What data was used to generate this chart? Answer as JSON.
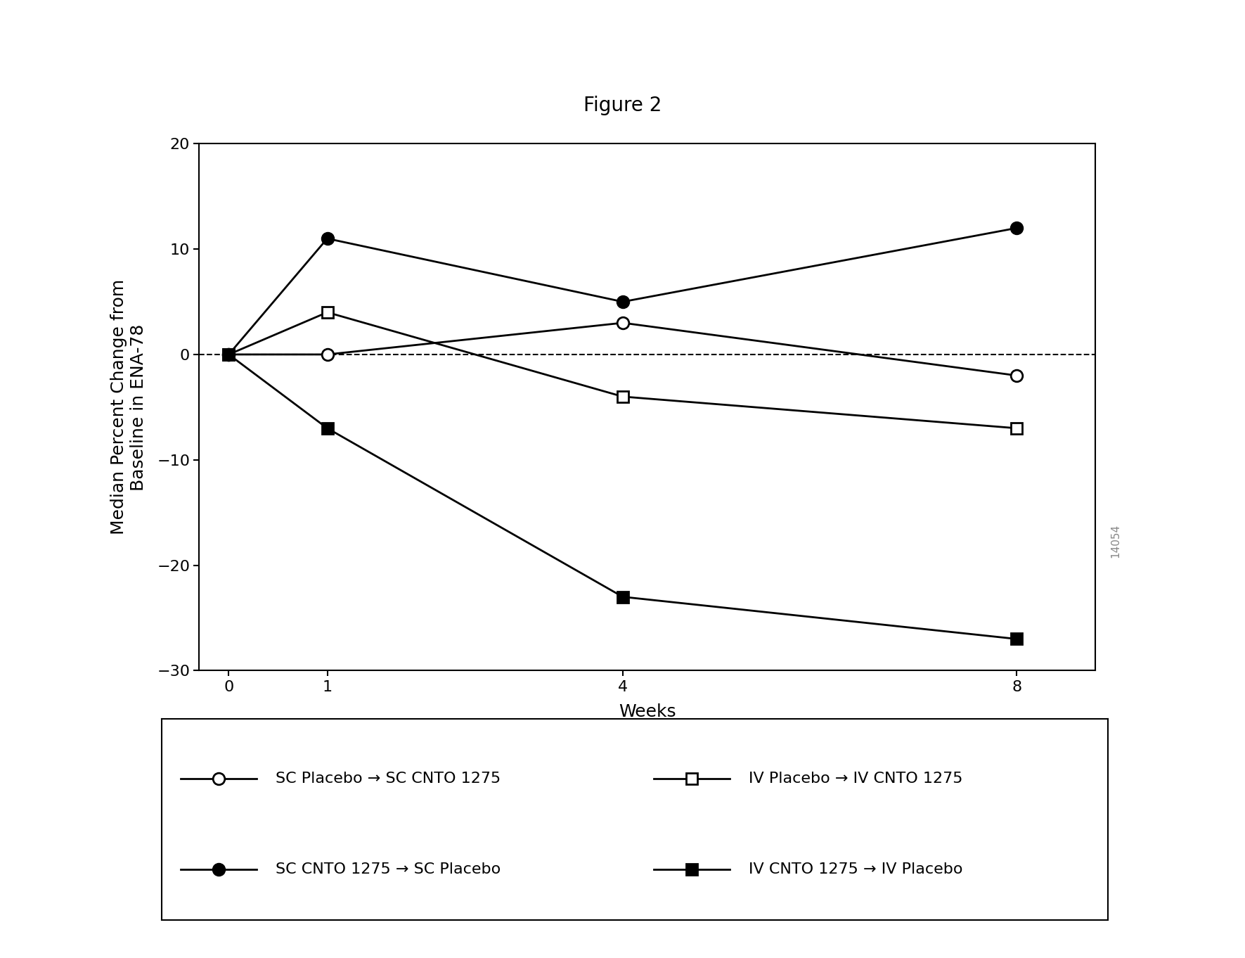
{
  "title": "Figure 2",
  "xlabel": "Weeks",
  "ylabel": "Median Percent Change from\nBaseline in ENA-78",
  "weeks": [
    0,
    1,
    4,
    8
  ],
  "series": [
    {
      "label": "SC Placebo → SC CNTO 1275",
      "values": [
        0,
        0,
        3,
        -2
      ],
      "marker": "o",
      "filled": false
    },
    {
      "label": "IV Placebo → IV CNTO 1275",
      "values": [
        0,
        4,
        -4,
        -7
      ],
      "marker": "s",
      "filled": false
    },
    {
      "label": "SC CNTO 1275 → SC Placebo",
      "values": [
        0,
        11,
        5,
        12
      ],
      "marker": "o",
      "filled": true
    },
    {
      "label": "IV CNTO 1275 → IV Placebo",
      "values": [
        0,
        -7,
        -23,
        -27
      ],
      "marker": "s",
      "filled": true
    }
  ],
  "legend_order": [
    0,
    2,
    1,
    3
  ],
  "ylim": [
    -30,
    20
  ],
  "yticks": [
    -30,
    -20,
    -10,
    0,
    10,
    20
  ],
  "xticks": [
    0,
    1,
    4,
    8
  ],
  "xlim": [
    -0.3,
    8.8
  ],
  "dashed_line_y": 0,
  "background_color": "#ffffff",
  "watermark": "14054",
  "linewidth": 2.0,
  "markersize": 12,
  "markeredgewidth": 2.0,
  "title_fontsize": 20,
  "axis_label_fontsize": 18,
  "tick_fontsize": 16,
  "legend_fontsize": 16
}
